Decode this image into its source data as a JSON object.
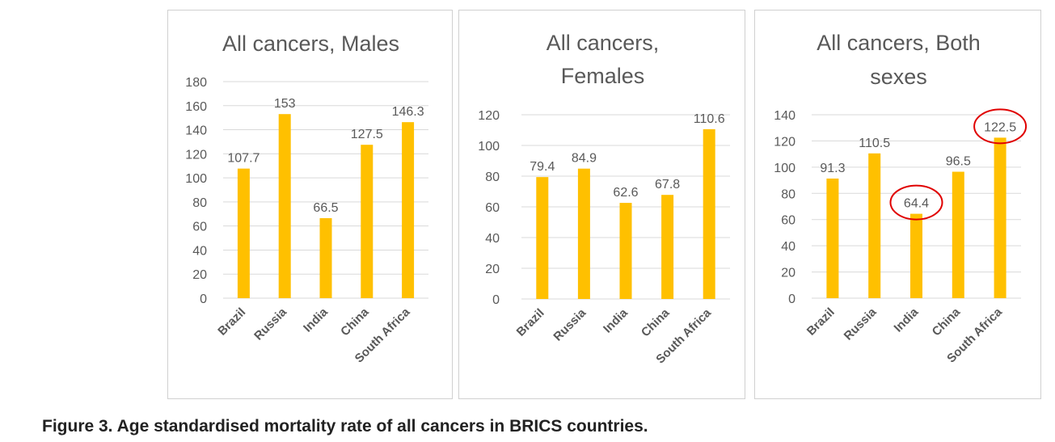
{
  "caption": "Figure 3. Age standardised mortality rate of all cancers in BRICS countries.",
  "colors": {
    "bar": "#ffc000",
    "grid": "#d9d9d9",
    "text": "#595959",
    "annotation": "#e00000"
  },
  "chart_data": [
    {
      "type": "bar",
      "title": [
        "All cancers, Males"
      ],
      "categories": [
        "Brazil",
        "Russia",
        "India",
        "China",
        "South Africa"
      ],
      "values": [
        107.7,
        153,
        66.5,
        127.5,
        146.3
      ],
      "value_labels": [
        "107.7",
        "153",
        "66.5",
        "127.5",
        "146.3"
      ],
      "ylim": [
        0,
        180
      ],
      "yticks": [
        "0",
        "20",
        "40",
        "60",
        "80",
        "100",
        "120",
        "140",
        "160",
        "180"
      ],
      "grid": true,
      "xlabel": "",
      "ylabel": "",
      "highlighted": []
    },
    {
      "type": "bar",
      "title": [
        "All cancers,",
        "Females"
      ],
      "categories": [
        "Brazil",
        "Russia",
        "India",
        "China",
        "South Africa"
      ],
      "values": [
        79.4,
        84.9,
        62.6,
        67.8,
        110.6
      ],
      "value_labels": [
        "79.4",
        "84.9",
        "62.6",
        "67.8",
        "110.6"
      ],
      "ylim": [
        0,
        120
      ],
      "yticks": [
        "0",
        "20",
        "40",
        "60",
        "80",
        "100",
        "120"
      ],
      "grid": true,
      "xlabel": "",
      "ylabel": "",
      "highlighted": []
    },
    {
      "type": "bar",
      "title": [
        "All cancers, Both",
        "sexes"
      ],
      "categories": [
        "Brazil",
        "Russia",
        "India",
        "China",
        "South Africa"
      ],
      "values": [
        91.3,
        110.5,
        64.4,
        96.5,
        122.5
      ],
      "value_labels": [
        "91.3",
        "110.5",
        "64.4",
        "96.5",
        "122.5"
      ],
      "ylim": [
        0,
        140
      ],
      "yticks": [
        "0",
        "20",
        "40",
        "60",
        "80",
        "100",
        "120",
        "140"
      ],
      "grid": true,
      "xlabel": "",
      "ylabel": "",
      "highlighted": [
        "India",
        "South Africa"
      ]
    }
  ]
}
